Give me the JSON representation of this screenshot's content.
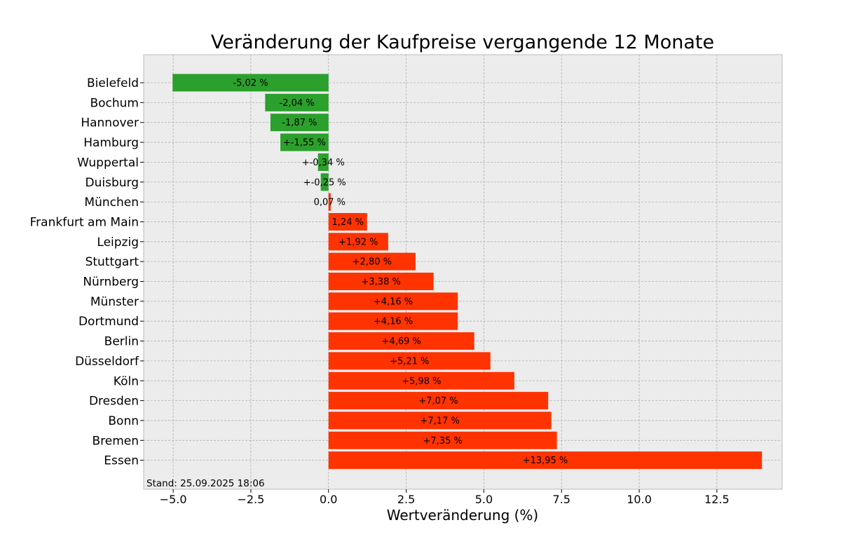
{
  "chart_data": {
    "type": "bar",
    "orientation": "horizontal",
    "title": "Veränderung der Kaufpreise vergangende 12 Monate",
    "xlabel": "Wertveränderung (%)",
    "ylabel": "",
    "categories": [
      "Bielefeld",
      "Bochum",
      "Hannover",
      "Hamburg",
      "Wuppertal",
      "Duisburg",
      "München",
      "Frankfurt am Main",
      "Leipzig",
      "Stuttgart",
      "Nürnberg",
      "Münster",
      "Dortmund",
      "Berlin",
      "Düsseldorf",
      "Köln",
      "Dresden",
      "Bonn",
      "Bremen",
      "Essen"
    ],
    "values": [
      -5.02,
      -2.04,
      -1.87,
      -1.55,
      -0.34,
      -0.25,
      0.07,
      1.24,
      1.92,
      2.8,
      3.38,
      4.16,
      4.16,
      4.69,
      5.21,
      5.98,
      7.07,
      7.17,
      7.35,
      13.95
    ],
    "data_labels": [
      "-5,02 %",
      "-2,04 %",
      "-1,87 %",
      "+-1,55 %",
      "+-0,34 %",
      "+-0,25 %",
      "0,07 %",
      "1,24 %",
      "+1,92 %",
      "+2,80 %",
      "+3,38 %",
      "+4,16 %",
      "+4,16 %",
      "+4,69 %",
      "+5,21 %",
      "+5,98 %",
      "+7,07 %",
      "+7,17 %",
      "+7,35 %",
      "+13,95 %"
    ],
    "xlim": [
      -5.95,
      14.6
    ],
    "xticks": [
      -5.0,
      -2.5,
      0.0,
      2.5,
      5.0,
      7.5,
      10.0,
      12.5
    ],
    "xtick_labels": [
      "−5.0",
      "−2.5",
      "0.0",
      "2.5",
      "5.0",
      "7.5",
      "10.0",
      "12.5"
    ],
    "grid": true,
    "colors": {
      "negative": "#2ca02c",
      "positive": "#ff3300",
      "plot_background": "#ececec",
      "frame": "#bdbdbd"
    },
    "annotation": "Stand: 25.09.2025 18:06"
  }
}
